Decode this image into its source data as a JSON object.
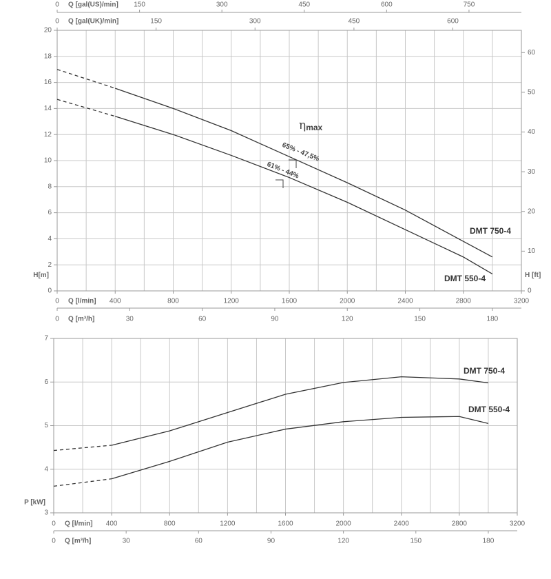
{
  "chart_data": [
    {
      "type": "line",
      "xlim": [
        0,
        3200
      ],
      "xticks": [
        0,
        400,
        800,
        1200,
        1600,
        2000,
        2400,
        2800,
        3200
      ],
      "xlabel": "Q [l/min]",
      "xgrid": [
        200,
        400,
        600,
        800,
        1000,
        1200,
        1400,
        1600,
        1800,
        2000,
        2200,
        2400,
        2600,
        2800,
        3000
      ],
      "ylim": [
        0,
        20
      ],
      "yticks": [
        0,
        2,
        4,
        6,
        8,
        10,
        12,
        14,
        16,
        18,
        20
      ],
      "ylabel": "H[m]",
      "y2lim": [
        0,
        65.6
      ],
      "y2ticks": [
        0,
        10,
        20,
        30,
        40,
        50,
        60
      ],
      "y2label": "H [ft]",
      "grid": true,
      "extra_x_axes": [
        {
          "label": "Q [gal(US)/min]",
          "lim": [
            0,
            845.4
          ],
          "ticks": [
            0,
            150,
            300,
            450,
            600,
            750
          ]
        },
        {
          "label": "Q [gal(UK)/min]",
          "lim": [
            0,
            703.9
          ],
          "ticks": [
            0,
            150,
            300,
            450,
            600
          ]
        },
        {
          "label": "Q [m³/h]",
          "lim": [
            0,
            192
          ],
          "ticks": [
            0,
            30,
            60,
            90,
            120,
            150,
            180
          ]
        }
      ],
      "series": [
        {
          "name": "DMT 750-4",
          "color": "#333333",
          "x": [
            400,
            800,
            1200,
            1600,
            2000,
            2400,
            2800,
            3000
          ],
          "values": [
            15.55,
            14.0,
            12.3,
            10.3,
            8.3,
            6.2,
            3.8,
            2.6
          ],
          "extrapolated": {
            "x": [
              0,
              400
            ],
            "values": [
              17.0,
              15.55
            ]
          }
        },
        {
          "name": "DMT 550-4",
          "color": "#333333",
          "x": [
            400,
            800,
            1200,
            1600,
            2000,
            2400,
            2800,
            3000
          ],
          "values": [
            13.4,
            12.0,
            10.4,
            8.7,
            6.8,
            4.7,
            2.6,
            1.3
          ],
          "extrapolated": {
            "x": [
              0,
              400
            ],
            "values": [
              14.7,
              13.4
            ]
          }
        }
      ],
      "annotations": [
        "65% - 47,5%",
        "61% - 44%"
      ],
      "eta_symbol": "η",
      "eta_sub": "max"
    },
    {
      "type": "line",
      "xlim": [
        0,
        3200
      ],
      "xticks": [
        0,
        400,
        800,
        1200,
        1600,
        2000,
        2400,
        2800,
        3200
      ],
      "xlabel": "Q [l/min]",
      "xgrid": [
        200,
        400,
        600,
        800,
        1000,
        1200,
        1400,
        1600,
        1800,
        2000,
        2200,
        2400,
        2600,
        2800,
        3000
      ],
      "ylim": [
        3,
        7
      ],
      "yticks": [
        3,
        4,
        5,
        6,
        7
      ],
      "ylabel": "P [kW]",
      "grid": true,
      "extra_x_axes": [
        {
          "label": "Q [m³/h]",
          "lim": [
            0,
            192
          ],
          "ticks": [
            0,
            30,
            60,
            90,
            120,
            150,
            180
          ]
        }
      ],
      "series": [
        {
          "name": "DMT 750-4",
          "color": "#333333",
          "x": [
            400,
            800,
            1200,
            1600,
            2000,
            2400,
            2800,
            3000
          ],
          "values": [
            4.55,
            4.88,
            5.3,
            5.72,
            5.99,
            6.12,
            6.07,
            5.98
          ],
          "extrapolated": {
            "x": [
              0,
              400
            ],
            "values": [
              4.43,
              4.55
            ]
          }
        },
        {
          "name": "DMT 550-4",
          "color": "#333333",
          "x": [
            400,
            800,
            1200,
            1600,
            2000,
            2400,
            2800,
            3000
          ],
          "values": [
            3.78,
            4.18,
            4.62,
            4.92,
            5.09,
            5.19,
            5.21,
            5.05
          ],
          "extrapolated": {
            "x": [
              0,
              400
            ],
            "values": [
              3.61,
              3.78
            ]
          }
        }
      ]
    }
  ]
}
